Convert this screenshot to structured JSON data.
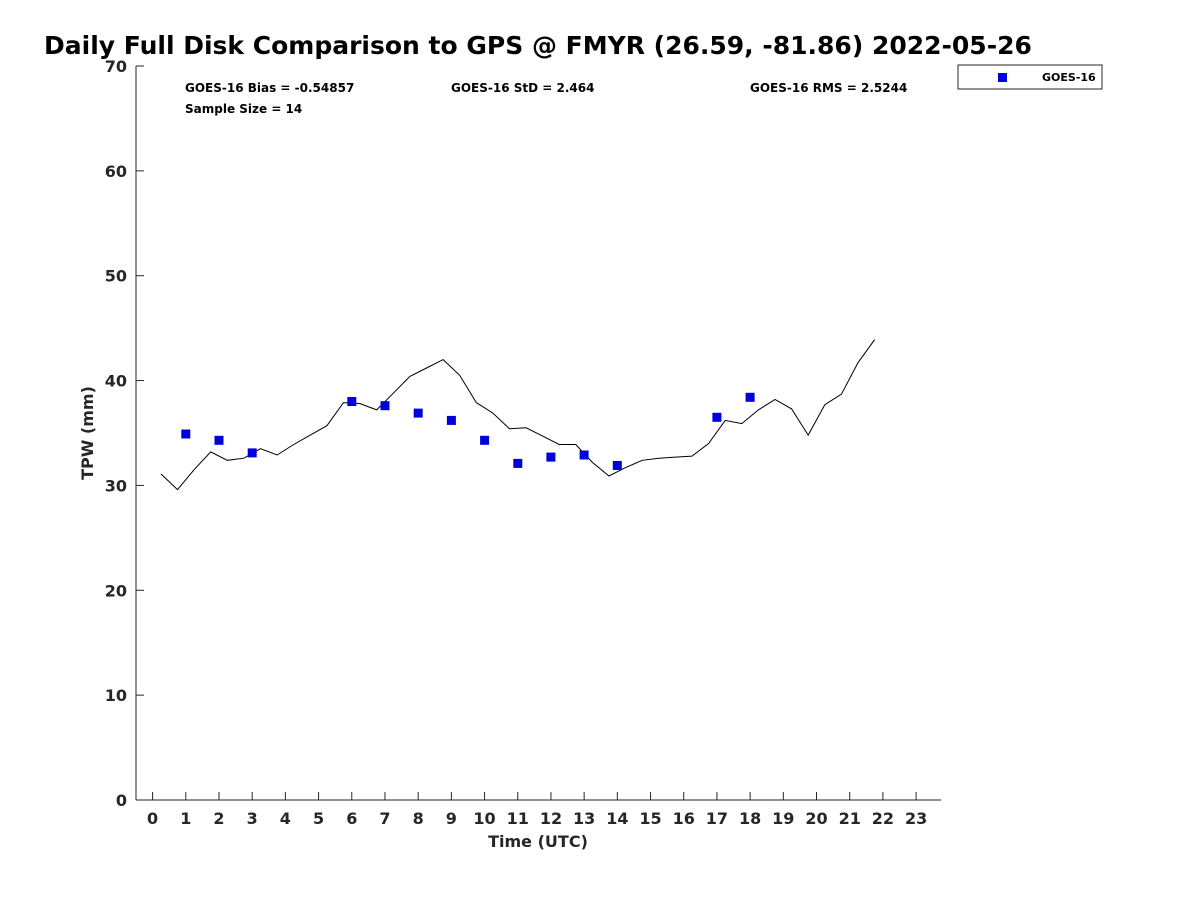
{
  "colors": {
    "goes": "#0000dd",
    "gps_line": "#000000",
    "axis": "#262626"
  },
  "stats": {
    "bias": "GOES-16 Bias = -0.54857",
    "std": "GOES-16 StD = 2.464",
    "rms": "GOES-16 RMS = 2.5244",
    "sample": "Sample Size = 14"
  },
  "chart_data": {
    "type": "scatter",
    "title": "Daily Full Disk Comparison to GPS @ FMYR (26.59, -81.86) 2022-05-26",
    "xlabel": "Time (UTC)",
    "ylabel": "TPW (mm)",
    "xlim": [
      -0.5,
      23.75
    ],
    "ylim": [
      0,
      70
    ],
    "xticks": [
      0,
      1,
      2,
      3,
      4,
      5,
      6,
      7,
      8,
      9,
      10,
      11,
      12,
      13,
      14,
      15,
      16,
      17,
      18,
      19,
      20,
      21,
      22,
      23
    ],
    "yticks": [
      0,
      10,
      20,
      30,
      40,
      50,
      60,
      70
    ],
    "grid": false,
    "legend_position": "outside top-right",
    "legend": [
      {
        "label": "GOES-16",
        "marker": "square",
        "color": "#0000dd"
      }
    ],
    "series": [
      {
        "name": "GOES-16",
        "kind": "scatter",
        "x": [
          1,
          2,
          3,
          6,
          7,
          8,
          9,
          10,
          11,
          12,
          13,
          14,
          17,
          18
        ],
        "y": [
          34.9,
          34.3,
          33.1,
          38.0,
          37.6,
          36.9,
          36.2,
          34.3,
          32.1,
          32.7,
          32.9,
          31.9,
          36.5,
          38.4
        ]
      },
      {
        "kind": "line",
        "x": [
          0.25,
          0.75,
          1.25,
          1.75,
          2.25,
          2.75,
          3.25,
          3.75,
          4.25,
          4.75,
          5.25,
          5.75,
          6.25,
          6.75,
          7.25,
          7.75,
          8.25,
          8.75,
          9.25,
          9.75,
          10.25,
          10.75,
          11.25,
          11.75,
          12.25,
          12.75,
          13.25,
          13.75,
          14.25,
          14.75,
          15.25,
          15.75,
          16.25,
          16.75,
          17.25,
          17.75,
          18.25,
          18.75,
          19.25,
          19.75,
          20.25,
          20.75,
          21.25,
          21.75
        ],
        "y": [
          31.1,
          29.6,
          31.5,
          33.2,
          32.4,
          32.6,
          33.5,
          32.9,
          33.9,
          34.8,
          35.7,
          37.9,
          37.8,
          37.2,
          38.8,
          40.4,
          41.2,
          42.0,
          40.5,
          37.9,
          36.9,
          35.4,
          35.5,
          34.7,
          33.9,
          33.9,
          32.2,
          30.9,
          31.7,
          32.4,
          32.6,
          32.7,
          32.8,
          34.0,
          36.2,
          35.9,
          37.2,
          38.2,
          37.3,
          34.8,
          37.7,
          38.7,
          41.7,
          43.9
        ]
      }
    ]
  }
}
